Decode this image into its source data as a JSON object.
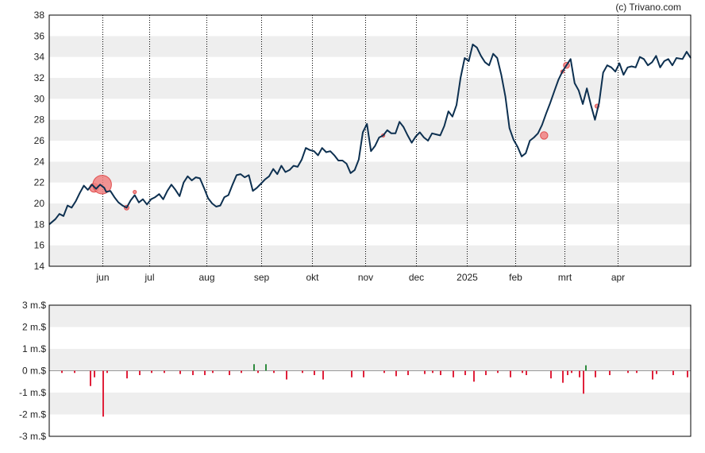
{
  "credit": "(c) Trivano.com",
  "chart_data": [
    {
      "type": "line",
      "ylim": [
        14,
        38
      ],
      "y_ticks": [
        "14",
        "16",
        "18",
        "20",
        "22",
        "24",
        "26",
        "28",
        "30",
        "32",
        "34",
        "36",
        "38"
      ],
      "y_tick_values": [
        14,
        16,
        18,
        20,
        22,
        24,
        26,
        28,
        30,
        32,
        34,
        36,
        38
      ],
      "x_range": [
        0,
        315
      ],
      "x_ticks": [
        {
          "label": "jun",
          "x": 26
        },
        {
          "label": "jul",
          "x": 49
        },
        {
          "label": "aug",
          "x": 77
        },
        {
          "label": "sep",
          "x": 104
        },
        {
          "label": "okt",
          "x": 129
        },
        {
          "label": "nov",
          "x": 155
        },
        {
          "label": "dec",
          "x": 180
        },
        {
          "label": "2025",
          "x": 205
        },
        {
          "label": "feb",
          "x": 229
        },
        {
          "label": "mrt",
          "x": 253
        },
        {
          "label": "apr",
          "x": 279
        }
      ],
      "grid": true,
      "series": [
        {
          "color": "#0d3050",
          "points": [
            [
              0,
              18.0
            ],
            [
              3,
              18.5
            ],
            [
              5,
              19.0
            ],
            [
              7,
              18.8
            ],
            [
              9,
              19.8
            ],
            [
              11,
              19.6
            ],
            [
              13,
              20.2
            ],
            [
              15,
              21.0
            ],
            [
              17,
              21.7
            ],
            [
              19,
              21.3
            ],
            [
              21,
              21.8
            ],
            [
              23,
              21.4
            ],
            [
              25,
              21.8
            ],
            [
              27,
              21.5
            ],
            [
              28,
              21.1
            ],
            [
              30,
              21.2
            ],
            [
              32,
              20.6
            ],
            [
              34,
              20.1
            ],
            [
              36,
              19.8
            ],
            [
              38,
              19.6
            ],
            [
              40,
              20.3
            ],
            [
              42,
              20.8
            ],
            [
              44,
              20.1
            ],
            [
              46,
              20.4
            ],
            [
              48,
              19.9
            ],
            [
              50,
              20.4
            ],
            [
              52,
              20.6
            ],
            [
              54,
              20.9
            ],
            [
              56,
              20.4
            ],
            [
              58,
              21.2
            ],
            [
              60,
              21.8
            ],
            [
              62,
              21.3
            ],
            [
              64,
              20.7
            ],
            [
              66,
              22.0
            ],
            [
              68,
              22.6
            ],
            [
              70,
              22.2
            ],
            [
              72,
              22.5
            ],
            [
              74,
              22.4
            ],
            [
              76,
              21.5
            ],
            [
              78,
              20.5
            ],
            [
              80,
              20.0
            ],
            [
              82,
              19.7
            ],
            [
              84,
              19.8
            ],
            [
              86,
              20.6
            ],
            [
              88,
              20.8
            ],
            [
              90,
              21.8
            ],
            [
              92,
              22.7
            ],
            [
              94,
              22.8
            ],
            [
              96,
              22.5
            ],
            [
              98,
              22.7
            ],
            [
              100,
              21.2
            ],
            [
              102,
              21.5
            ],
            [
              104,
              21.9
            ],
            [
              106,
              22.3
            ],
            [
              108,
              22.6
            ],
            [
              110,
              23.3
            ],
            [
              112,
              22.8
            ],
            [
              114,
              23.6
            ],
            [
              116,
              23.0
            ],
            [
              118,
              23.2
            ],
            [
              120,
              23.6
            ],
            [
              122,
              23.5
            ],
            [
              124,
              24.2
            ],
            [
              126,
              25.3
            ],
            [
              128,
              25.1
            ],
            [
              130,
              25.0
            ],
            [
              132,
              24.6
            ],
            [
              134,
              25.3
            ],
            [
              136,
              24.9
            ],
            [
              138,
              25.0
            ],
            [
              140,
              24.6
            ],
            [
              142,
              24.1
            ],
            [
              144,
              24.1
            ],
            [
              146,
              23.8
            ],
            [
              148,
              22.9
            ],
            [
              150,
              23.2
            ],
            [
              152,
              24.2
            ],
            [
              154,
              26.8
            ],
            [
              156,
              27.6
            ],
            [
              158,
              25.0
            ],
            [
              160,
              25.5
            ],
            [
              162,
              26.3
            ],
            [
              164,
              26.5
            ],
            [
              166,
              27.0
            ],
            [
              168,
              26.7
            ],
            [
              170,
              26.7
            ],
            [
              172,
              27.8
            ],
            [
              174,
              27.3
            ],
            [
              176,
              26.5
            ],
            [
              178,
              25.8
            ],
            [
              180,
              26.4
            ],
            [
              182,
              26.8
            ],
            [
              184,
              26.3
            ],
            [
              186,
              26.0
            ],
            [
              188,
              26.7
            ],
            [
              190,
              26.6
            ],
            [
              192,
              26.5
            ],
            [
              194,
              27.4
            ],
            [
              196,
              28.8
            ],
            [
              198,
              28.3
            ],
            [
              200,
              29.4
            ],
            [
              202,
              32.0
            ],
            [
              204,
              33.9
            ],
            [
              206,
              33.6
            ],
            [
              208,
              35.2
            ],
            [
              210,
              34.9
            ],
            [
              212,
              34.1
            ],
            [
              214,
              33.5
            ],
            [
              216,
              33.2
            ],
            [
              218,
              34.3
            ],
            [
              220,
              33.9
            ],
            [
              222,
              32.3
            ],
            [
              224,
              30.2
            ],
            [
              226,
              27.2
            ],
            [
              228,
              26.1
            ],
            [
              230,
              25.4
            ],
            [
              232,
              24.5
            ],
            [
              234,
              24.8
            ],
            [
              236,
              26.0
            ],
            [
              238,
              26.3
            ],
            [
              240,
              26.7
            ],
            [
              242,
              27.5
            ],
            [
              244,
              28.6
            ],
            [
              246,
              29.6
            ],
            [
              248,
              30.7
            ],
            [
              250,
              31.8
            ],
            [
              252,
              32.6
            ],
            [
              254,
              33.2
            ],
            [
              256,
              33.8
            ],
            [
              258,
              31.5
            ],
            [
              260,
              30.8
            ],
            [
              262,
              29.5
            ],
            [
              264,
              31.0
            ],
            [
              266,
              29.4
            ],
            [
              268,
              28.0
            ],
            [
              270,
              29.6
            ],
            [
              272,
              32.5
            ],
            [
              274,
              33.2
            ],
            [
              276,
              33.0
            ],
            [
              278,
              32.6
            ],
            [
              280,
              33.4
            ],
            [
              282,
              32.3
            ],
            [
              284,
              33.0
            ],
            [
              286,
              33.1
            ],
            [
              288,
              33.0
            ],
            [
              290,
              34.0
            ],
            [
              292,
              33.8
            ],
            [
              294,
              33.2
            ],
            [
              296,
              33.5
            ],
            [
              298,
              34.1
            ],
            [
              300,
              33.0
            ],
            [
              302,
              33.6
            ],
            [
              304,
              33.8
            ],
            [
              306,
              33.2
            ],
            [
              308,
              33.9
            ],
            [
              311,
              33.8
            ],
            [
              313,
              34.5
            ],
            [
              315,
              33.9
            ]
          ]
        }
      ],
      "markers": [
        [
          22,
          21.5,
          2.5
        ],
        [
          26,
          21.8,
          6
        ],
        [
          38,
          19.6,
          1
        ],
        [
          42,
          21.1,
          0.5
        ],
        [
          164,
          26.5,
          0.5
        ],
        [
          243,
          26.5,
          2
        ],
        [
          252,
          32.6,
          0.5
        ],
        [
          254,
          33.2,
          1.5
        ],
        [
          269,
          29.3,
          0.8
        ]
      ]
    },
    {
      "type": "bar",
      "ylim": [
        -3,
        3
      ],
      "y_ticks": [
        "-3 m.$",
        "-2 m.$",
        "-1 m.$",
        "0 m.$",
        "1 m.$",
        "2 m.$",
        "3 m.$"
      ],
      "y_tick_values": [
        -3,
        -2,
        -1,
        0,
        1,
        2,
        3
      ],
      "x_range": [
        0,
        315
      ],
      "grid": true,
      "colors": {
        "negative": "#e0203a",
        "positive": "#2e8b3e"
      },
      "bars": [
        [
          6,
          -0.1
        ],
        [
          12,
          -0.1
        ],
        [
          20,
          -0.7
        ],
        [
          22,
          -0.3
        ],
        [
          26,
          -2.1
        ],
        [
          28,
          -0.1
        ],
        [
          38,
          -0.35
        ],
        [
          44,
          -0.2
        ],
        [
          50,
          -0.1
        ],
        [
          56,
          -0.1
        ],
        [
          64,
          -0.15
        ],
        [
          70,
          -0.2
        ],
        [
          76,
          -0.2
        ],
        [
          80,
          -0.1
        ],
        [
          88,
          -0.2
        ],
        [
          94,
          -0.1
        ],
        [
          100,
          0.3
        ],
        [
          102,
          -0.1
        ],
        [
          106,
          0.3
        ],
        [
          110,
          -0.1
        ],
        [
          116,
          -0.4
        ],
        [
          124,
          -0.1
        ],
        [
          130,
          -0.2
        ],
        [
          134,
          -0.4
        ],
        [
          148,
          -0.3
        ],
        [
          154,
          -0.3
        ],
        [
          164,
          -0.1
        ],
        [
          170,
          -0.25
        ],
        [
          176,
          -0.2
        ],
        [
          184,
          -0.15
        ],
        [
          188,
          -0.1
        ],
        [
          192,
          -0.2
        ],
        [
          198,
          -0.3
        ],
        [
          204,
          -0.2
        ],
        [
          208,
          -0.5
        ],
        [
          214,
          -0.2
        ],
        [
          220,
          -0.1
        ],
        [
          226,
          -0.3
        ],
        [
          232,
          -0.1
        ],
        [
          234,
          -0.2
        ],
        [
          246,
          -0.35
        ],
        [
          252,
          -0.55
        ],
        [
          254,
          -0.2
        ],
        [
          256,
          -0.1
        ],
        [
          260,
          -0.3
        ],
        [
          262,
          -1.05
        ],
        [
          263,
          0.25
        ],
        [
          268,
          -0.3
        ],
        [
          275,
          -0.2
        ],
        [
          284,
          -0.1
        ],
        [
          288,
          -0.1
        ],
        [
          296,
          -0.4
        ],
        [
          298,
          -0.15
        ],
        [
          306,
          -0.2
        ],
        [
          313,
          -0.3
        ]
      ]
    }
  ]
}
